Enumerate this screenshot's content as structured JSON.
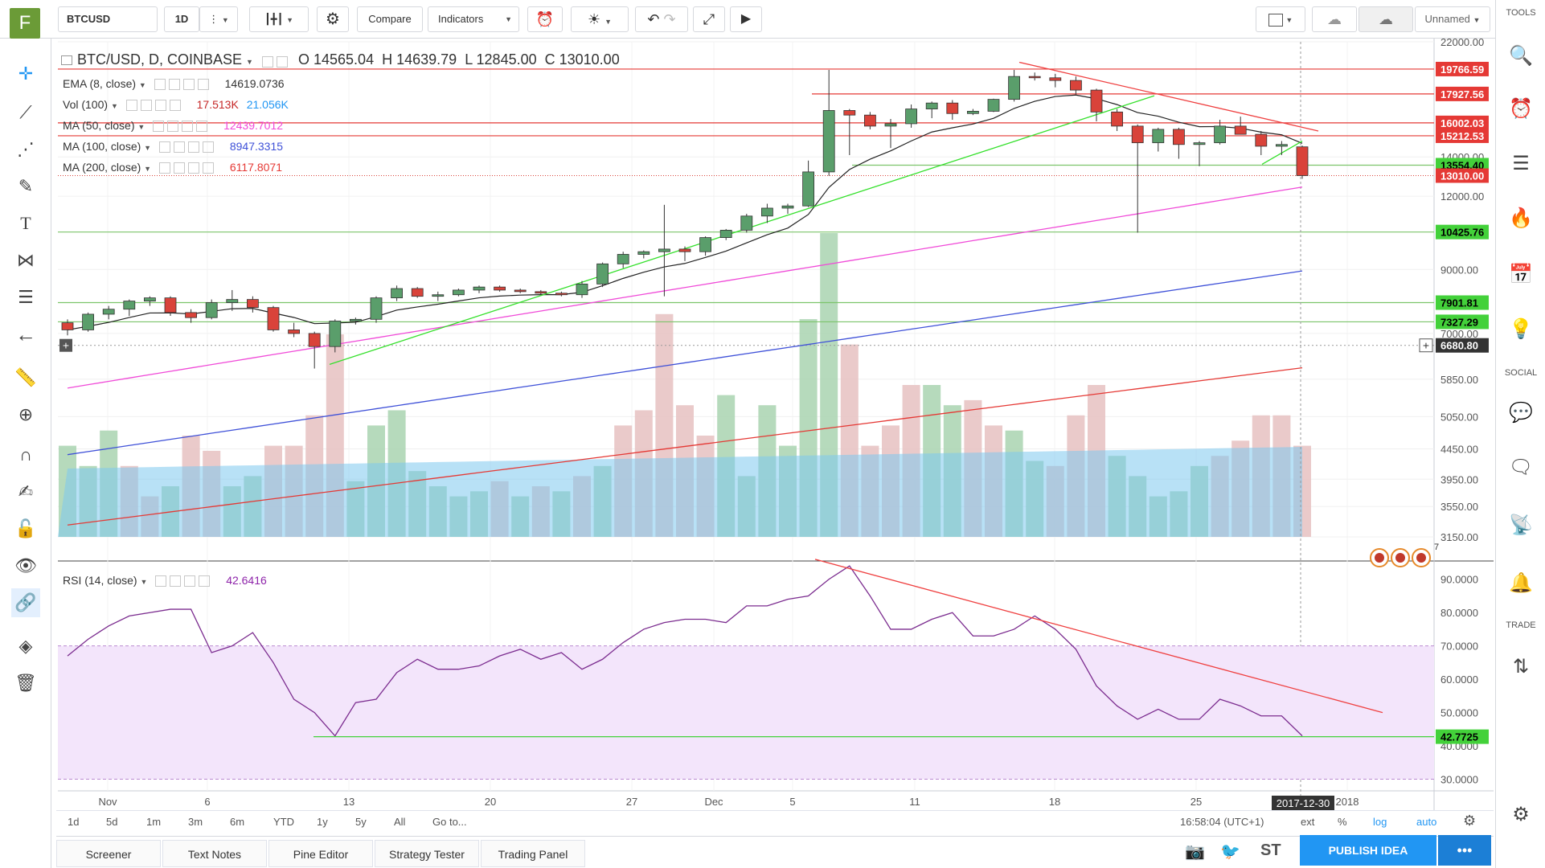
{
  "toolbar": {
    "logo": "F",
    "symbol": "BTCUSD",
    "interval": "1D",
    "compare": "Compare",
    "indicators": "Indicators",
    "layout_name": "Unnamed"
  },
  "legend": {
    "title": "BTC/USD, D, COINBASE",
    "ohlc": {
      "o": "O 14565.04",
      "h": "H 14639.79",
      "l": "L 12845.00",
      "c": "C 13010.00"
    },
    "ema": {
      "label": "EMA (8, close)",
      "value": "14619.0736"
    },
    "vol": {
      "label": "Vol (100)",
      "value1": "17.513K",
      "value2": "21.056K"
    },
    "ma50": {
      "label": "MA (50, close)",
      "value": "12439.7012"
    },
    "ma100": {
      "label": "MA (100, close)",
      "value": "8947.3315"
    },
    "ma200": {
      "label": "MA (200, close)",
      "value": "6117.8071"
    },
    "rsi": {
      "label": "RSI (14, close)",
      "value": "42.6416"
    }
  },
  "colors": {
    "up": "#4f8f5a",
    "up_body": "#5a9e6b",
    "down": "#d9433a",
    "ema": "#222222",
    "ma50": "#f04ad8",
    "ma100": "#3f51d8",
    "ma200": "#e53935",
    "rsi": "#7b2c8f",
    "hline_red": "#e53935",
    "hline_green": "#7cc46a",
    "trend_green": "#35e02c",
    "trend_red": "#ef4040",
    "vol_up": "#a9d3b0",
    "vol_down": "#e6c1c1",
    "vol_ma": "#7ec8ef"
  },
  "chart_data": {
    "type": "candlestick",
    "price_axis": {
      "ticks": [
        "22000.00",
        "16000.00",
        "14000.00",
        "12000.00",
        "9000.00",
        "7000.00",
        "5850.00",
        "5050.00",
        "4450.00",
        "3950.00",
        "3550.00",
        "3150.00"
      ]
    },
    "price_labels": [
      {
        "text": "19766.59",
        "kind": "red"
      },
      {
        "text": "17927.56",
        "kind": "red"
      },
      {
        "text": "16002.03",
        "kind": "red"
      },
      {
        "text": "15212.53",
        "kind": "red"
      },
      {
        "text": "13554.40",
        "kind": "green"
      },
      {
        "text": "13010.00",
        "kind": "red"
      },
      {
        "text": "10425.76",
        "kind": "green"
      },
      {
        "text": "7901.81",
        "kind": "green"
      },
      {
        "text": "7327.29",
        "kind": "green"
      },
      {
        "text": "6680.80",
        "kind": "crosshair"
      }
    ],
    "rsi_axis": {
      "ticks": [
        "90.0000",
        "80.0000",
        "70.0000",
        "60.0000",
        "50.0000",
        "40.0000",
        "30.0000"
      ]
    },
    "rsi_label": "42.7725",
    "x_labels": [
      "Nov",
      "6",
      "13",
      "20",
      "27",
      "Dec",
      "5",
      "11",
      "18",
      "25",
      "2018"
    ],
    "crosshair_date": "2017-12-30",
    "candles": [
      [
        7300,
        7400,
        6950,
        7100
      ],
      [
        7100,
        7600,
        7050,
        7550
      ],
      [
        7550,
        7800,
        7400,
        7700
      ],
      [
        7700,
        8000,
        7500,
        7950
      ],
      [
        7950,
        8100,
        7800,
        8050
      ],
      [
        8050,
        8100,
        7500,
        7600
      ],
      [
        7600,
        7700,
        7300,
        7450
      ],
      [
        7450,
        8000,
        7400,
        7900
      ],
      [
        7900,
        8300,
        7650,
        8000
      ],
      [
        8000,
        8100,
        7600,
        7750
      ],
      [
        7750,
        7800,
        7050,
        7100
      ],
      [
        7100,
        7300,
        6900,
        7000
      ],
      [
        7000,
        7050,
        6100,
        6650
      ],
      [
        6650,
        7400,
        6500,
        7350
      ],
      [
        7350,
        7450,
        7250,
        7400
      ],
      [
        7400,
        8100,
        7300,
        8050
      ],
      [
        8050,
        8450,
        7950,
        8350
      ],
      [
        8350,
        8400,
        8050,
        8100
      ],
      [
        8100,
        8250,
        7950,
        8150
      ],
      [
        8150,
        8350,
        8100,
        8300
      ],
      [
        8300,
        8450,
        8200,
        8400
      ],
      [
        8400,
        8450,
        8250,
        8300
      ],
      [
        8300,
        8350,
        8200,
        8250
      ],
      [
        8250,
        8300,
        8150,
        8200
      ],
      [
        8200,
        8250,
        8100,
        8150
      ],
      [
        8150,
        8600,
        8050,
        8500
      ],
      [
        8500,
        9250,
        8400,
        9200
      ],
      [
        9200,
        9650,
        9050,
        9550
      ],
      [
        9550,
        9700,
        9400,
        9650
      ],
      [
        9650,
        11600,
        8100,
        9750
      ],
      [
        9750,
        9850,
        9300,
        9650
      ],
      [
        9650,
        10250,
        9500,
        10200
      ],
      [
        10200,
        10550,
        10100,
        10500
      ],
      [
        10500,
        11200,
        10400,
        11100
      ],
      [
        11100,
        11650,
        10800,
        11450
      ],
      [
        11450,
        11650,
        11200,
        11550
      ],
      [
        11550,
        13800,
        11500,
        13200
      ],
      [
        13200,
        19700,
        13000,
        16800
      ],
      [
        16800,
        16900,
        14100,
        16500
      ],
      [
        16500,
        16700,
        15600,
        15800
      ],
      [
        15800,
        16250,
        14500,
        15950
      ],
      [
        15950,
        17200,
        15700,
        16900
      ],
      [
        16900,
        17400,
        16300,
        17300
      ],
      [
        17300,
        17500,
        16200,
        16600
      ],
      [
        16600,
        16900,
        16500,
        16750
      ],
      [
        16750,
        17600,
        16700,
        17550
      ],
      [
        17550,
        19700,
        17400,
        19200
      ],
      [
        19200,
        19500,
        18900,
        19100
      ],
      [
        19100,
        19400,
        18400,
        18900
      ],
      [
        18900,
        19200,
        17900,
        18200
      ],
      [
        18200,
        18300,
        16100,
        16700
      ],
      [
        16700,
        16900,
        15500,
        15800
      ],
      [
        15800,
        15900,
        10400,
        14800
      ],
      [
        14800,
        15700,
        14300,
        15600
      ],
      [
        15600,
        15700,
        13900,
        14700
      ],
      [
        14700,
        14900,
        13500,
        14800
      ],
      [
        14800,
        16200,
        14700,
        15800
      ],
      [
        15800,
        16400,
        15400,
        15300
      ],
      [
        15300,
        15500,
        14100,
        14600
      ],
      [
        14600,
        14900,
        14100,
        14700
      ],
      [
        14565,
        14640,
        12845,
        13010
      ]
    ],
    "volume": [
      {
        "v": 18,
        "up": true
      },
      {
        "v": 14,
        "up": true
      },
      {
        "v": 21,
        "up": true
      },
      {
        "v": 14,
        "up": false
      },
      {
        "v": 8,
        "up": false
      },
      {
        "v": 10,
        "up": true
      },
      {
        "v": 20,
        "up": false
      },
      {
        "v": 17,
        "up": false
      },
      {
        "v": 10,
        "up": true
      },
      {
        "v": 12,
        "up": true
      },
      {
        "v": 18,
        "up": false
      },
      {
        "v": 18,
        "up": false
      },
      {
        "v": 24,
        "up": false
      },
      {
        "v": 40,
        "up": false
      },
      {
        "v": 11,
        "up": true
      },
      {
        "v": 22,
        "up": true
      },
      {
        "v": 25,
        "up": true
      },
      {
        "v": 13,
        "up": true
      },
      {
        "v": 10,
        "up": true
      },
      {
        "v": 8,
        "up": true
      },
      {
        "v": 9,
        "up": true
      },
      {
        "v": 11,
        "up": false
      },
      {
        "v": 8,
        "up": true
      },
      {
        "v": 10,
        "up": false
      },
      {
        "v": 9,
        "up": true
      },
      {
        "v": 12,
        "up": false
      },
      {
        "v": 14,
        "up": true
      },
      {
        "v": 22,
        "up": false
      },
      {
        "v": 25,
        "up": false
      },
      {
        "v": 44,
        "up": false
      },
      {
        "v": 26,
        "up": false
      },
      {
        "v": 20,
        "up": false
      },
      {
        "v": 28,
        "up": true
      },
      {
        "v": 12,
        "up": true
      },
      {
        "v": 26,
        "up": true
      },
      {
        "v": 18,
        "up": true
      },
      {
        "v": 43,
        "up": true
      },
      {
        "v": 60,
        "up": true
      },
      {
        "v": 38,
        "up": false
      },
      {
        "v": 18,
        "up": false
      },
      {
        "v": 22,
        "up": false
      },
      {
        "v": 30,
        "up": false
      },
      {
        "v": 30,
        "up": true
      },
      {
        "v": 26,
        "up": true
      },
      {
        "v": 27,
        "up": false
      },
      {
        "v": 22,
        "up": false
      },
      {
        "v": 21,
        "up": true
      },
      {
        "v": 15,
        "up": true
      },
      {
        "v": 14,
        "up": false
      },
      {
        "v": 24,
        "up": false
      },
      {
        "v": 30,
        "up": false
      },
      {
        "v": 16,
        "up": true
      },
      {
        "v": 12,
        "up": true
      },
      {
        "v": 8,
        "up": true
      },
      {
        "v": 9,
        "up": true
      },
      {
        "v": 14,
        "up": true
      },
      {
        "v": 16,
        "up": false
      },
      {
        "v": 19,
        "up": false
      },
      {
        "v": 24,
        "up": false
      },
      {
        "v": 24,
        "up": false
      },
      {
        "v": 18,
        "up": false
      }
    ],
    "rsi": [
      67,
      72,
      76,
      79,
      80,
      81,
      81,
      68,
      70,
      74,
      65,
      54,
      50,
      43,
      53,
      54,
      62,
      66,
      63,
      63,
      64,
      67,
      69,
      66,
      68,
      63,
      66,
      71,
      75,
      77,
      78,
      78,
      77,
      82,
      82,
      84,
      85,
      90,
      94,
      85,
      75,
      75,
      78,
      80,
      73,
      73,
      75,
      79,
      75,
      69,
      58,
      52,
      48,
      51,
      48,
      48,
      54,
      52,
      49,
      49,
      43
    ]
  },
  "bottom": {
    "ranges": [
      "1d",
      "5d",
      "1m",
      "3m",
      "6m",
      "YTD",
      "1y",
      "5y",
      "All"
    ],
    "goto": "Go to...",
    "time": "16:58:04 (UTC+1)",
    "ext": "ext",
    "percent": "%",
    "log": "log",
    "auto": "auto",
    "tabs": [
      "Screener",
      "Text Notes",
      "Pine Editor",
      "Strategy Tester",
      "Trading Panel"
    ],
    "publish": "PUBLISH IDEA",
    "st": "ST"
  },
  "right": {
    "tools": "TOOLS",
    "social": "SOCIAL",
    "trade": "TRADE"
  }
}
